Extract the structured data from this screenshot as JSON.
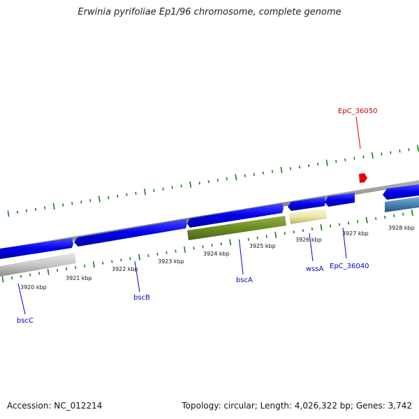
{
  "title": "Erwinia pyrifoliae Ep1/96 chromosome, complete genome",
  "footer": {
    "accession": "Accession: NC_012214",
    "summary": "Topology: circular; Length: 4,026,322 bp; Genes: 3,742"
  },
  "scale_labels": [
    "3920 kbp",
    "3921 kbp",
    "3922 kbp",
    "3923 kbp",
    "3924 kbp",
    "3925 kbp",
    "3926 kbp",
    "3927 kbp",
    "3928 kbp"
  ],
  "genes": [
    {
      "name": "bscC",
      "color": "#0000ee"
    },
    {
      "name": "bscB",
      "color": "#0000ee"
    },
    {
      "name": "bscA",
      "color": "#0000ee"
    },
    {
      "name": "wssA",
      "color": "#0000ee"
    },
    {
      "name": "EpC_36040",
      "color": "#0000ee"
    },
    {
      "name": "EpC_36050",
      "color": "#dd0000"
    }
  ],
  "colors": {
    "backbone": "#888888",
    "tick": "#1a7a1a",
    "cds_forward": "#0000ee",
    "cds_reverse": "#0000ee",
    "orf_green": "#6b8e23",
    "orf_yellow": "#eee8aa",
    "orf_gray": "#c8c8c8",
    "orf_steel": "#4682b4",
    "rna_red": "#ee0000"
  }
}
